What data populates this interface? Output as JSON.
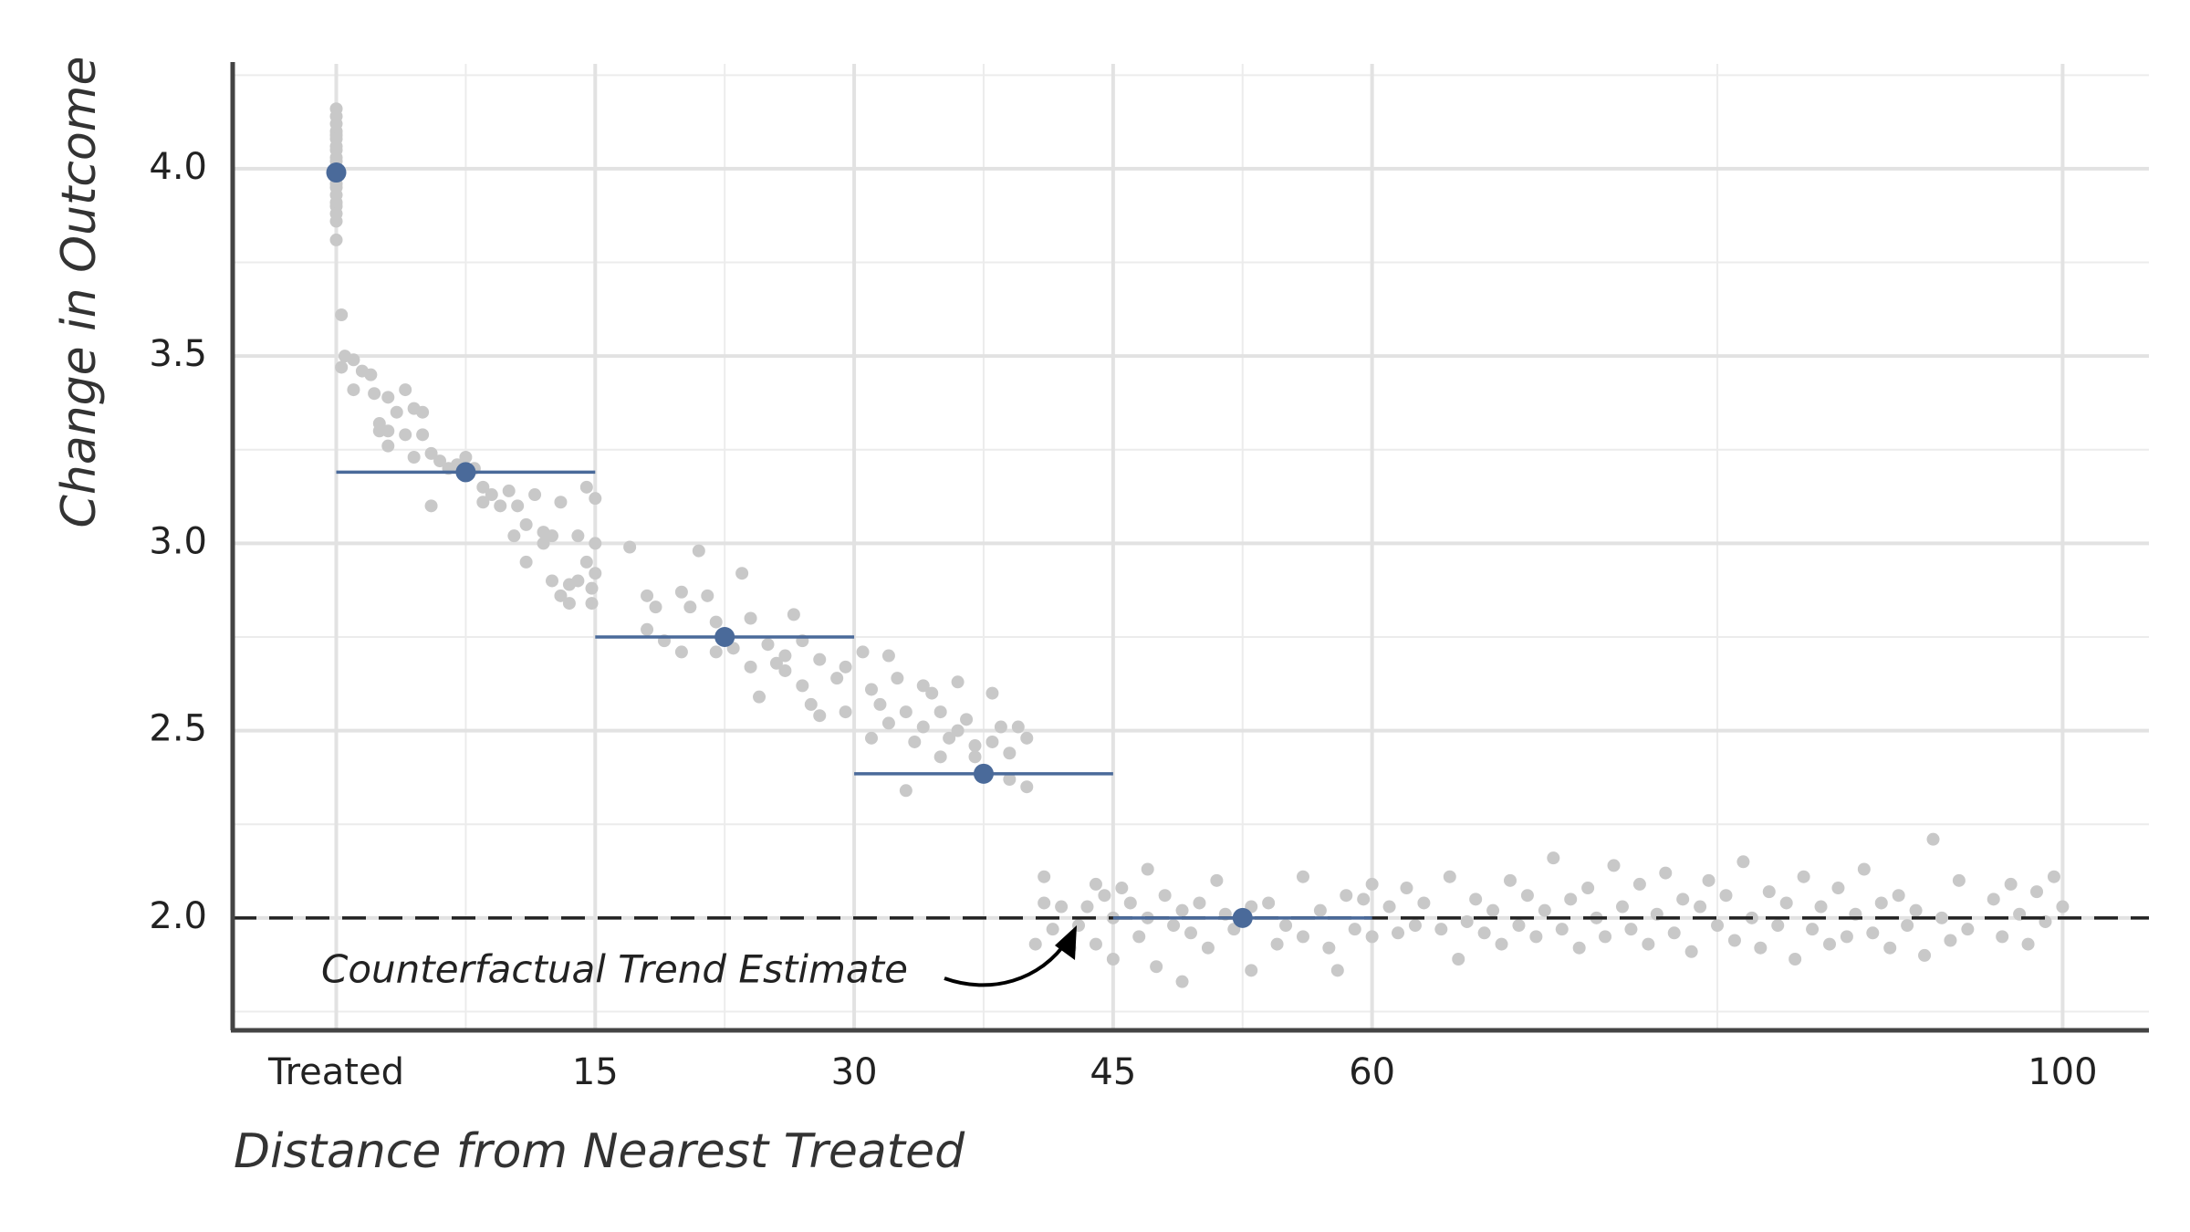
{
  "chart_data": {
    "type": "scatter",
    "x_label": "Distance from Nearest Treated",
    "y_label": "Change in Outcome",
    "annotation": "Counterfactual Trend Estimate",
    "xlim": [
      -6,
      105
    ],
    "ylim": [
      1.7,
      4.28
    ],
    "xticks": [
      {
        "value": 0,
        "label": "Treated"
      },
      15,
      30,
      45,
      60,
      100
    ],
    "xminor": [
      7.5,
      22.5,
      37.5,
      52.5,
      80
    ],
    "yticks": [
      {
        "value": 2,
        "label": "2.0"
      },
      {
        "value": 2.5,
        "label": "2.5"
      },
      {
        "value": 3,
        "label": "3.0"
      },
      {
        "value": 3.5,
        "label": "3.5"
      },
      {
        "value": 4,
        "label": "4.0"
      }
    ],
    "yminor": [
      1.75,
      2.25,
      2.75,
      3.25,
      3.75,
      4.25
    ],
    "grid": true,
    "reference_line": 2.0,
    "point_color": "#c8c8c8",
    "mean_color": "#4a6a9a",
    "bin_means": {
      "x": [
        0,
        7.5,
        22.5,
        37.5,
        52.5
      ],
      "y": [
        3.99,
        3.19,
        2.75,
        2.385,
        2.0
      ],
      "start": [
        null,
        0,
        15,
        30,
        45
      ],
      "end": [
        null,
        15,
        30,
        45,
        60
      ]
    },
    "points": [
      [
        0,
        4.16
      ],
      [
        0,
        4.14
      ],
      [
        0,
        4.12
      ],
      [
        0,
        4.1
      ],
      [
        0,
        4.09
      ],
      [
        0,
        4.08
      ],
      [
        0,
        4.06
      ],
      [
        0,
        4.05
      ],
      [
        0,
        4.03
      ],
      [
        0,
        4.02
      ],
      [
        0,
        4.0
      ],
      [
        0,
        3.98
      ],
      [
        0,
        3.96
      ],
      [
        0,
        3.95
      ],
      [
        0,
        3.93
      ],
      [
        0,
        3.91
      ],
      [
        0,
        3.9
      ],
      [
        0,
        3.88
      ],
      [
        0,
        3.86
      ],
      [
        0,
        3.81
      ],
      [
        0.3,
        3.61
      ],
      [
        0.3,
        3.47
      ],
      [
        0.5,
        3.5
      ],
      [
        1,
        3.41
      ],
      [
        1,
        3.49
      ],
      [
        1.5,
        3.46
      ],
      [
        2,
        3.45
      ],
      [
        2.2,
        3.4
      ],
      [
        2.5,
        3.32
      ],
      [
        2.5,
        3.3
      ],
      [
        3,
        3.39
      ],
      [
        3,
        3.3
      ],
      [
        3,
        3.26
      ],
      [
        3.5,
        3.35
      ],
      [
        4,
        3.41
      ],
      [
        4,
        3.29
      ],
      [
        4.5,
        3.36
      ],
      [
        4.5,
        3.23
      ],
      [
        5,
        3.35
      ],
      [
        5,
        3.29
      ],
      [
        5.5,
        3.24
      ],
      [
        5.5,
        3.1
      ],
      [
        6,
        3.22
      ],
      [
        6.5,
        3.2
      ],
      [
        7,
        3.21
      ],
      [
        7.5,
        3.23
      ],
      [
        8,
        3.2
      ],
      [
        8.5,
        3.15
      ],
      [
        8.5,
        3.11
      ],
      [
        9,
        3.13
      ],
      [
        9.5,
        3.1
      ],
      [
        10,
        3.14
      ],
      [
        10.3,
        3.02
      ],
      [
        10.5,
        3.1
      ],
      [
        11,
        3.05
      ],
      [
        11,
        2.95
      ],
      [
        11.5,
        3.13
      ],
      [
        12,
        3.03
      ],
      [
        12,
        3.0
      ],
      [
        12.5,
        3.02
      ],
      [
        12.5,
        2.9
      ],
      [
        13,
        3.11
      ],
      [
        13,
        2.86
      ],
      [
        13.5,
        2.89
      ],
      [
        13.5,
        2.84
      ],
      [
        14,
        3.02
      ],
      [
        14,
        2.9
      ],
      [
        14.5,
        3.15
      ],
      [
        14.5,
        2.95
      ],
      [
        14.8,
        2.88
      ],
      [
        14.8,
        2.84
      ],
      [
        15,
        3.0
      ],
      [
        15,
        3.12
      ],
      [
        15,
        2.92
      ],
      [
        17,
        2.99
      ],
      [
        18,
        2.86
      ],
      [
        18,
        2.77
      ],
      [
        18.5,
        2.83
      ],
      [
        19,
        2.74
      ],
      [
        20,
        2.87
      ],
      [
        20,
        2.71
      ],
      [
        20.5,
        2.83
      ],
      [
        21,
        2.98
      ],
      [
        21.5,
        2.86
      ],
      [
        22,
        2.79
      ],
      [
        22,
        2.71
      ],
      [
        23,
        2.72
      ],
      [
        23.5,
        2.92
      ],
      [
        24,
        2.8
      ],
      [
        24,
        2.67
      ],
      [
        24.5,
        2.59
      ],
      [
        25,
        2.73
      ],
      [
        25.5,
        2.68
      ],
      [
        26,
        2.7
      ],
      [
        26,
        2.66
      ],
      [
        26.5,
        2.81
      ],
      [
        27,
        2.74
      ],
      [
        27,
        2.62
      ],
      [
        27.5,
        2.57
      ],
      [
        28,
        2.69
      ],
      [
        28,
        2.54
      ],
      [
        29,
        2.64
      ],
      [
        29.5,
        2.55
      ],
      [
        29.5,
        2.67
      ],
      [
        30.5,
        2.71
      ],
      [
        31,
        2.61
      ],
      [
        31,
        2.48
      ],
      [
        31.5,
        2.57
      ],
      [
        32,
        2.7
      ],
      [
        32,
        2.52
      ],
      [
        32.5,
        2.64
      ],
      [
        33,
        2.55
      ],
      [
        33,
        2.34
      ],
      [
        33.5,
        2.47
      ],
      [
        34,
        2.62
      ],
      [
        34,
        2.51
      ],
      [
        34.5,
        2.6
      ],
      [
        35,
        2.55
      ],
      [
        35,
        2.43
      ],
      [
        35.5,
        2.48
      ],
      [
        36,
        2.63
      ],
      [
        36,
        2.5
      ],
      [
        36.5,
        2.53
      ],
      [
        37,
        2.46
      ],
      [
        37,
        2.43
      ],
      [
        38,
        2.6
      ],
      [
        38,
        2.47
      ],
      [
        38.5,
        2.51
      ],
      [
        39,
        2.44
      ],
      [
        39,
        2.37
      ],
      [
        39.5,
        2.51
      ],
      [
        40,
        2.48
      ],
      [
        40,
        2.35
      ],
      [
        40.5,
        1.93
      ],
      [
        41,
        2.11
      ],
      [
        41,
        2.04
      ],
      [
        41.5,
        1.97
      ],
      [
        42,
        2.03
      ],
      [
        42.5,
        1.92
      ],
      [
        43,
        1.98
      ],
      [
        43.5,
        2.03
      ],
      [
        44,
        2.09
      ],
      [
        44,
        1.93
      ],
      [
        44.5,
        2.06
      ],
      [
        45,
        2.0
      ],
      [
        45,
        1.89
      ],
      [
        45.5,
        2.08
      ],
      [
        46,
        2.04
      ],
      [
        46.5,
        1.95
      ],
      [
        47,
        2.13
      ],
      [
        47,
        2.0
      ],
      [
        47.5,
        1.87
      ],
      [
        48,
        2.06
      ],
      [
        48.5,
        1.98
      ],
      [
        49,
        2.02
      ],
      [
        49,
        1.83
      ],
      [
        49.5,
        1.96
      ],
      [
        50,
        2.04
      ],
      [
        50.5,
        1.92
      ],
      [
        51,
        2.1
      ],
      [
        51.5,
        2.01
      ],
      [
        52,
        1.97
      ],
      [
        53,
        2.03
      ],
      [
        53,
        1.86
      ],
      [
        54,
        2.04
      ],
      [
        54.5,
        1.93
      ],
      [
        55,
        1.98
      ],
      [
        56,
        2.11
      ],
      [
        56,
        1.95
      ],
      [
        57,
        2.02
      ],
      [
        57.5,
        1.92
      ],
      [
        58,
        1.86
      ],
      [
        58.5,
        2.06
      ],
      [
        59,
        1.97
      ],
      [
        59.5,
        2.05
      ],
      [
        60,
        2.09
      ],
      [
        60,
        1.95
      ],
      [
        61,
        2.03
      ],
      [
        61.5,
        1.96
      ],
      [
        62,
        2.08
      ],
      [
        62.5,
        1.98
      ],
      [
        63,
        2.04
      ],
      [
        64,
        1.97
      ],
      [
        64.5,
        2.11
      ],
      [
        65,
        1.89
      ],
      [
        65.5,
        1.99
      ],
      [
        66,
        2.05
      ],
      [
        66.5,
        1.96
      ],
      [
        67,
        2.02
      ],
      [
        67.5,
        1.93
      ],
      [
        68,
        2.1
      ],
      [
        68.5,
        1.98
      ],
      [
        69,
        2.06
      ],
      [
        69.5,
        1.95
      ],
      [
        70,
        2.02
      ],
      [
        70.5,
        2.16
      ],
      [
        71,
        1.97
      ],
      [
        71.5,
        2.05
      ],
      [
        72,
        1.92
      ],
      [
        72.5,
        2.08
      ],
      [
        73,
        2.0
      ],
      [
        73.5,
        1.95
      ],
      [
        74,
        2.14
      ],
      [
        74.5,
        2.03
      ],
      [
        75,
        1.97
      ],
      [
        75.5,
        2.09
      ],
      [
        76,
        1.93
      ],
      [
        76.5,
        2.01
      ],
      [
        77,
        2.12
      ],
      [
        77.5,
        1.96
      ],
      [
        78,
        2.05
      ],
      [
        78.5,
        1.91
      ],
      [
        79,
        2.03
      ],
      [
        79.5,
        2.1
      ],
      [
        80,
        1.98
      ],
      [
        80.5,
        2.06
      ],
      [
        81,
        1.94
      ],
      [
        81.5,
        2.15
      ],
      [
        82,
        2.0
      ],
      [
        82.5,
        1.92
      ],
      [
        83,
        2.07
      ],
      [
        83.5,
        1.98
      ],
      [
        84,
        2.04
      ],
      [
        84.5,
        1.89
      ],
      [
        85,
        2.11
      ],
      [
        85.5,
        1.97
      ],
      [
        86,
        2.03
      ],
      [
        86.5,
        1.93
      ],
      [
        87,
        2.08
      ],
      [
        87.5,
        1.95
      ],
      [
        88,
        2.01
      ],
      [
        88.5,
        2.13
      ],
      [
        89,
        1.96
      ],
      [
        89.5,
        2.04
      ],
      [
        90,
        1.92
      ],
      [
        90.5,
        2.06
      ],
      [
        91,
        1.98
      ],
      [
        91.5,
        2.02
      ],
      [
        92,
        1.9
      ],
      [
        92.5,
        2.21
      ],
      [
        93,
        2.0
      ],
      [
        93.5,
        1.94
      ],
      [
        94,
        2.1
      ],
      [
        94.5,
        1.97
      ],
      [
        96,
        2.05
      ],
      [
        96.5,
        1.95
      ],
      [
        97,
        2.09
      ],
      [
        97.5,
        2.01
      ],
      [
        98,
        1.93
      ],
      [
        98.5,
        2.07
      ],
      [
        99,
        1.99
      ],
      [
        99.5,
        2.11
      ],
      [
        100,
        2.03
      ]
    ]
  }
}
